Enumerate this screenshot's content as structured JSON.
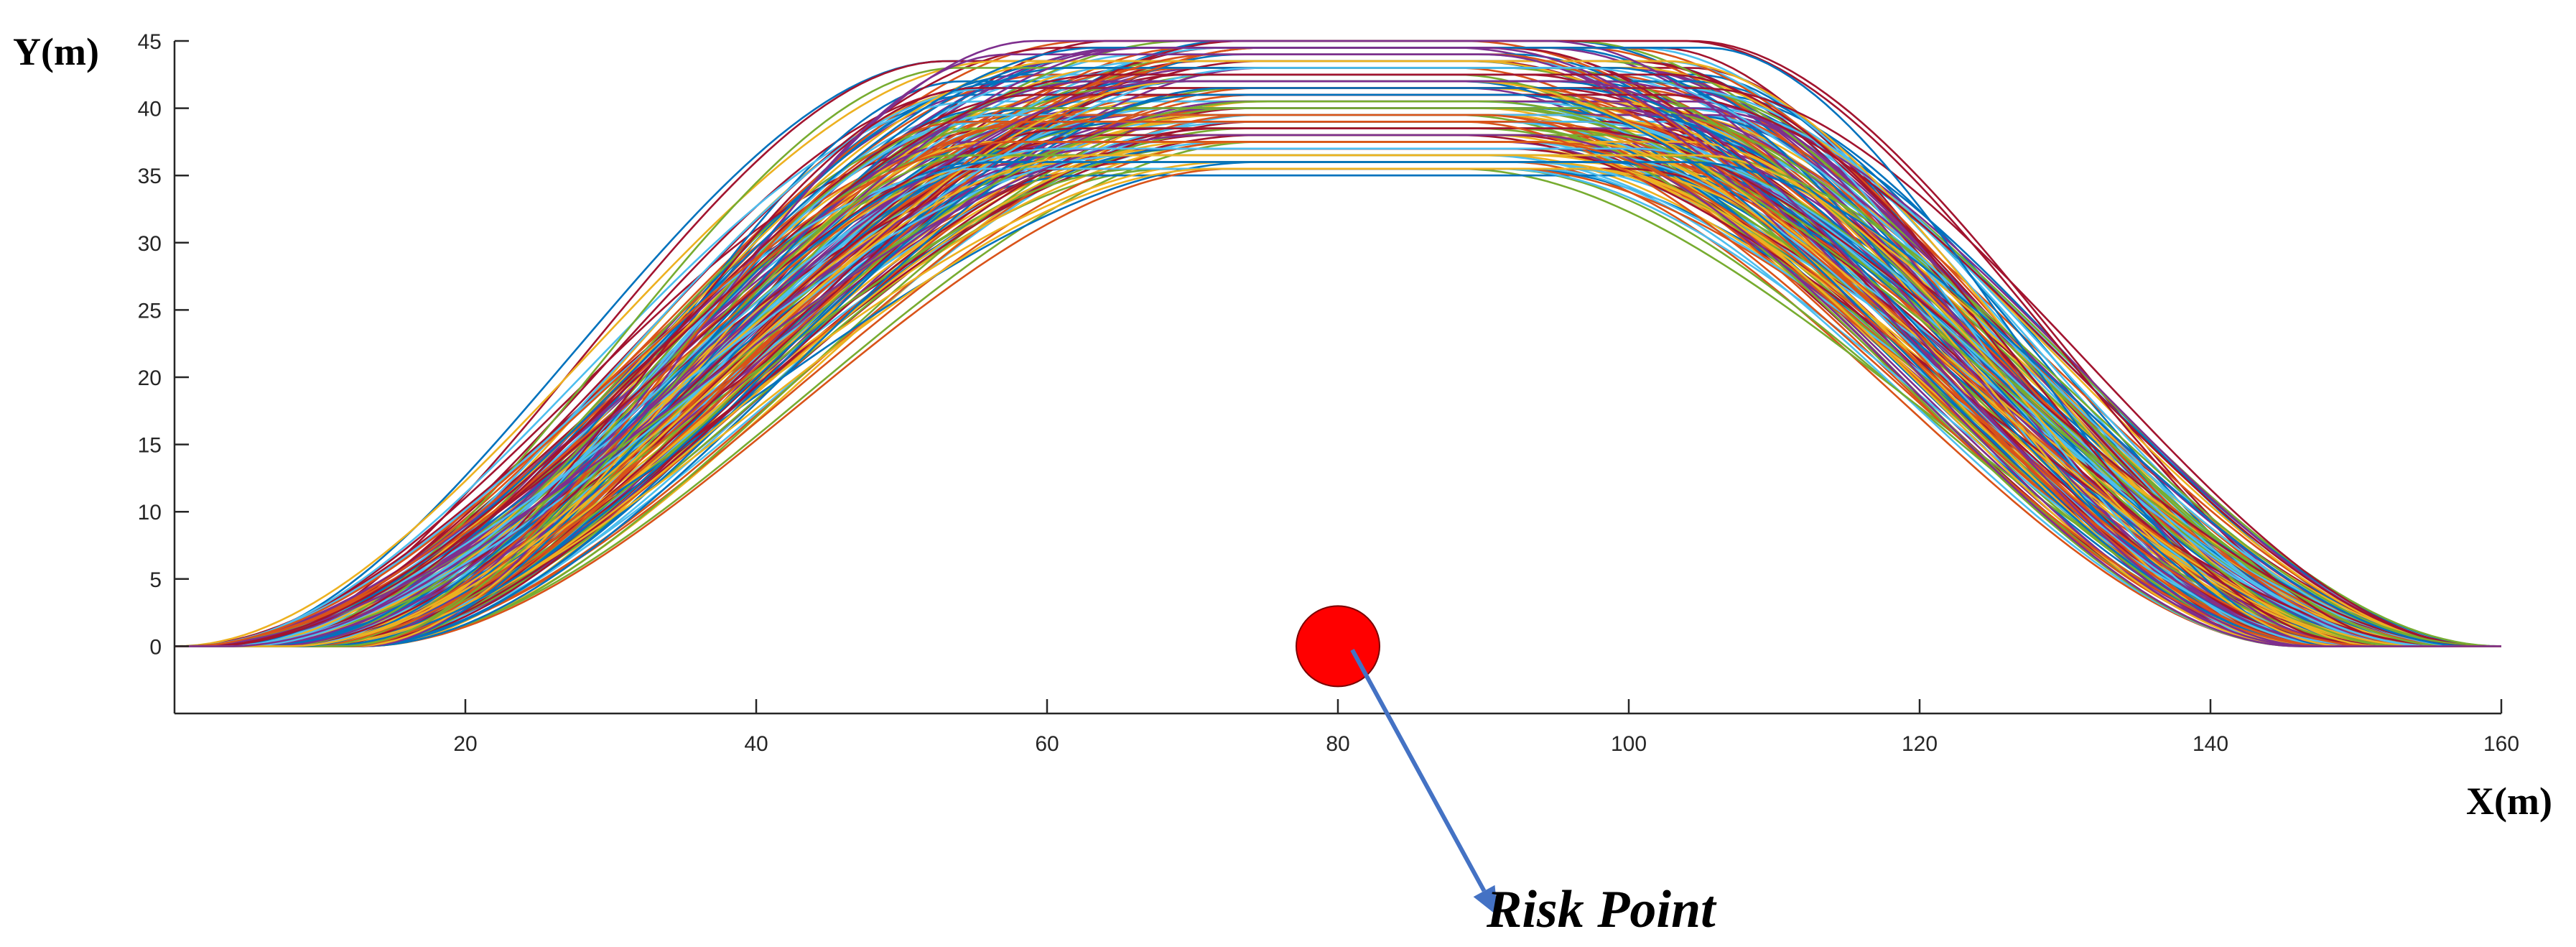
{
  "chart_data": {
    "type": "line",
    "title": "",
    "xlabel": "X(m)",
    "ylabel": "Y(m)",
    "xlim": [
      0,
      160
    ],
    "ylim": [
      -5,
      45
    ],
    "xticks": [
      20,
      40,
      60,
      80,
      100,
      120,
      140,
      160
    ],
    "yticks": [
      0,
      5,
      10,
      15,
      20,
      25,
      30,
      35,
      40,
      45
    ],
    "grid": false,
    "legend": "none",
    "description_of_series": "Dense family of trajectories from (0,0) to (160,0); each rises through a smooth S-curve to a plateau between y=35 and y=45, holds it across the middle, then descends symmetrically.",
    "trajectory_family": {
      "start": [
        0,
        0
      ],
      "end": [
        160,
        0
      ],
      "plateau_min": 35,
      "plateau_max": 45,
      "rise_start_range": [
        0,
        13
      ],
      "rise_end_range": [
        53,
        75
      ],
      "fall_start_range": [
        88,
        106
      ],
      "fall_end_range": [
        146,
        160
      ],
      "count": 200,
      "colors": [
        "#0072BD",
        "#D95319",
        "#EDB120",
        "#7E2F8E",
        "#77AC30",
        "#4DBEEE",
        "#A2142F"
      ]
    },
    "risk_point": {
      "x": 80,
      "y": 0,
      "color": "#FF0000",
      "label": "Risk Point",
      "label_anchor": [
        91,
        -19
      ],
      "arrow_color": "#4472C4"
    }
  }
}
